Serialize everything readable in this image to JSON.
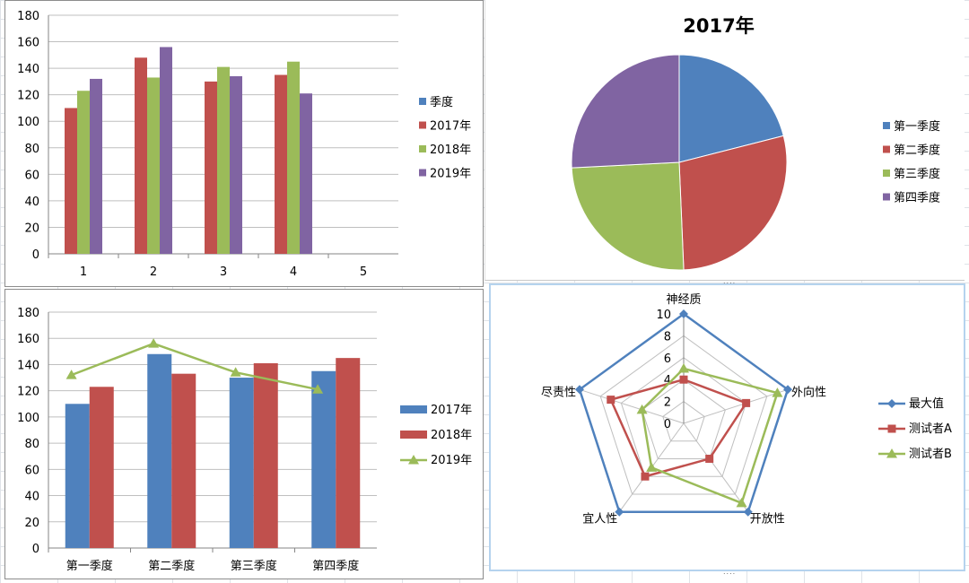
{
  "colors": {
    "blue": "#4f81bd",
    "red": "#c0504d",
    "green": "#9bbb59",
    "purple": "#8064a2",
    "grid": "#bfbfbf",
    "text": "#000000"
  },
  "chart_data": [
    {
      "type": "bar",
      "title": "",
      "categories": [
        "1",
        "2",
        "3",
        "4",
        "5"
      ],
      "series": [
        {
          "name": "季度",
          "color": "#4f81bd",
          "values": [
            null,
            null,
            null,
            null,
            null
          ]
        },
        {
          "name": "2017年",
          "color": "#c0504d",
          "values": [
            110,
            148,
            130,
            135,
            null
          ]
        },
        {
          "name": "2018年",
          "color": "#9bbb59",
          "values": [
            123,
            133,
            141,
            145,
            null
          ]
        },
        {
          "name": "2019年",
          "color": "#8064a2",
          "values": [
            132,
            156,
            134,
            121,
            null
          ]
        }
      ],
      "ylim": [
        0,
        180
      ],
      "yticks": [
        0,
        20,
        40,
        60,
        80,
        100,
        120,
        140,
        160,
        180
      ],
      "grid": true,
      "legend": "right"
    },
    {
      "type": "pie",
      "title": "2017年",
      "categories": [
        "第一季度",
        "第二季度",
        "第三季度",
        "第四季度"
      ],
      "values": [
        110,
        148,
        130,
        135
      ],
      "colors": [
        "#4f81bd",
        "#c0504d",
        "#9bbb59",
        "#8064a2"
      ],
      "legend": "right"
    },
    {
      "type": "bar",
      "title": "",
      "categories": [
        "第一季度",
        "第二季度",
        "第三季度",
        "第四季度"
      ],
      "series": [
        {
          "name": "2017年",
          "kind": "bar",
          "color": "#4f81bd",
          "values": [
            110,
            148,
            130,
            135
          ]
        },
        {
          "name": "2018年",
          "kind": "bar",
          "color": "#c0504d",
          "values": [
            123,
            133,
            141,
            145
          ]
        },
        {
          "name": "2019年",
          "kind": "line",
          "color": "#9bbb59",
          "values": [
            132,
            156,
            134,
            121
          ]
        }
      ],
      "ylim": [
        0,
        180
      ],
      "yticks": [
        0,
        20,
        40,
        60,
        80,
        100,
        120,
        140,
        160,
        180
      ],
      "grid": true,
      "legend": "right"
    },
    {
      "type": "radar",
      "title": "",
      "axes": [
        "神经质",
        "外向性",
        "开放性",
        "宜人性",
        "尽责性"
      ],
      "rlim": [
        0,
        10
      ],
      "rticks": [
        0,
        2,
        4,
        6,
        8,
        10
      ],
      "series": [
        {
          "name": "最大值",
          "color": "#4f81bd",
          "marker": "diamond",
          "values": [
            10,
            10,
            10,
            10,
            10
          ]
        },
        {
          "name": "测试者A",
          "color": "#c0504d",
          "marker": "square",
          "values": [
            4,
            6,
            4,
            6,
            7
          ]
        },
        {
          "name": "测试者B",
          "color": "#9bbb59",
          "marker": "triangle",
          "values": [
            5,
            9,
            9,
            5,
            4
          ]
        }
      ],
      "grid": true,
      "legend": "right"
    }
  ],
  "handles": {
    "resize": "....",
    "resize2": "...."
  }
}
